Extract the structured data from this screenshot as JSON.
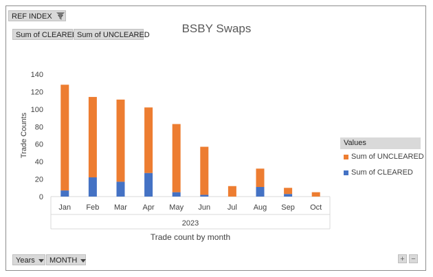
{
  "filters": {
    "report_filter": "REF INDEX",
    "value_buttons": [
      "Sum of CLEARED",
      "Sum of UNCLEARED"
    ],
    "axis_buttons": [
      "Years",
      "MONTH"
    ]
  },
  "legend": {
    "title": "Values",
    "items": [
      {
        "label": "Sum of UNCLEARED",
        "color": "#ed7d31"
      },
      {
        "label": "Sum of CLEARED",
        "color": "#4472c4"
      }
    ]
  },
  "zoom": {
    "plus": "+",
    "minus": "−"
  },
  "chart_data": {
    "type": "bar",
    "stacked": true,
    "title": "BSBY Swaps",
    "xlabel": "Trade count by month",
    "ylabel": "Trade Counts",
    "group_label": "2023",
    "categories": [
      "Jan",
      "Feb",
      "Mar",
      "Apr",
      "May",
      "Jun",
      "Jul",
      "Aug",
      "Sep",
      "Oct"
    ],
    "series": [
      {
        "name": "Sum of CLEARED",
        "color": "#4472c4",
        "values": [
          7,
          22,
          17,
          27,
          5,
          2,
          0,
          11,
          3,
          0
        ]
      },
      {
        "name": "Sum of UNCLEARED",
        "color": "#ed7d31",
        "values": [
          121,
          92,
          94,
          75,
          78,
          55,
          12,
          21,
          7,
          5
        ]
      }
    ],
    "ylim": [
      0,
      140
    ],
    "yticks": [
      0,
      20,
      40,
      60,
      80,
      100,
      120,
      140
    ],
    "grid": false,
    "legend_position": "right"
  }
}
